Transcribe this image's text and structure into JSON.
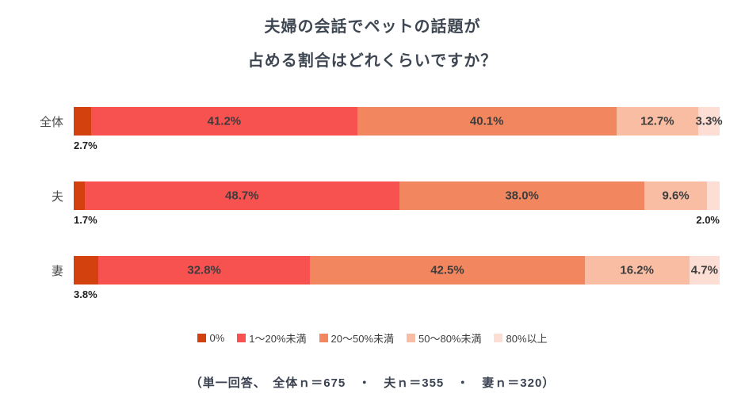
{
  "title": {
    "line1": "夫婦の会話でペットの話題が",
    "line2": "占める割合はどれくらいですか？"
  },
  "chart_data": {
    "type": "bar",
    "stacked": true,
    "orientation": "horizontal",
    "unit": "%",
    "xlim": [
      0,
      100
    ],
    "legend_position": "bottom",
    "value_label_format": "one-decimal-percent",
    "categories": [
      "全体",
      "夫",
      "妻"
    ],
    "series": [
      {
        "name": "0%",
        "color": "#d2410e",
        "values": [
          2.7,
          1.7,
          3.8
        ]
      },
      {
        "name": "1〜20%未満",
        "color": "#f75150",
        "values": [
          41.2,
          48.7,
          32.8
        ]
      },
      {
        "name": "20〜50%未満",
        "color": "#f2865f",
        "values": [
          40.1,
          38.0,
          42.5
        ]
      },
      {
        "name": "50〜80%未満",
        "color": "#f9bda3",
        "values": [
          12.7,
          9.6,
          16.2
        ]
      },
      {
        "name": "80%以上",
        "color": "#fcded5",
        "values": [
          3.3,
          2.0,
          4.7
        ]
      }
    ],
    "sample_sizes": {
      "全体": 675,
      "夫": 355,
      "妻": 320
    }
  },
  "footnote": "（単一回答、　全体ｎ＝675　・　夫ｎ＝355　・　妻ｎ＝320）"
}
